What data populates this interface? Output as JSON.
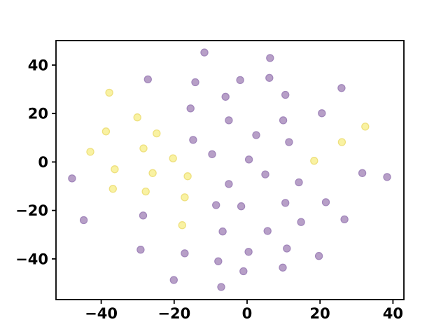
{
  "figure": {
    "background": "#ffffff",
    "frame_color": "#000000",
    "tick_label_color": "#000000"
  },
  "chart_data": {
    "type": "scatter",
    "title": "",
    "xlabel": "",
    "ylabel": "",
    "grid": false,
    "legend_position": "none",
    "xlim": [
      -52.4,
      43.0
    ],
    "ylim": [
      -56.8,
      50.1
    ],
    "xticks": {
      "values": [
        -40,
        -20,
        0,
        20,
        40
      ],
      "labels": [
        "−40",
        "−20",
        "0",
        "20",
        "40"
      ]
    },
    "yticks": {
      "values": [
        -40,
        -20,
        0,
        20,
        40
      ],
      "labels": [
        "−40",
        "−20",
        "0",
        "20",
        "40"
      ]
    },
    "marker": {
      "radius": 5,
      "stroke_width": 1.3
    },
    "series": [
      {
        "name": "class-purple",
        "fill": "#b79fc7",
        "stroke": "#a287bb",
        "points": [
          [
            -11.7,
            45.2
          ],
          [
            -27.2,
            34.1
          ],
          [
            -14.2,
            32.9
          ],
          [
            -5.9,
            26.9
          ],
          [
            -15.5,
            22.1
          ],
          [
            -14.8,
            9.1
          ],
          [
            -9.6,
            3.2
          ],
          [
            6.3,
            42.9
          ],
          [
            -1.9,
            33.8
          ],
          [
            6.1,
            34.7
          ],
          [
            25.9,
            30.5
          ],
          [
            10.5,
            27.7
          ],
          [
            20.5,
            20.1
          ],
          [
            -5.0,
            17.2
          ],
          [
            9.9,
            17.2
          ],
          [
            2.5,
            11.1
          ],
          [
            11.5,
            8.2
          ],
          [
            0.5,
            1.0
          ],
          [
            -48.0,
            -6.8
          ],
          [
            -8.5,
            -17.8
          ],
          [
            -44.8,
            -24.0
          ],
          [
            -28.5,
            -22.1
          ],
          [
            -6.7,
            -28.7
          ],
          [
            -29.2,
            -36.2
          ],
          [
            -17.1,
            -37.7
          ],
          [
            -7.9,
            -41.0
          ],
          [
            -20.1,
            -48.7
          ],
          [
            -7.1,
            -51.6
          ],
          [
            5.0,
            -5.1
          ],
          [
            31.6,
            -4.6
          ],
          [
            38.4,
            -6.2
          ],
          [
            -5.0,
            -9.1
          ],
          [
            14.2,
            -8.4
          ],
          [
            -1.6,
            -18.3
          ],
          [
            10.5,
            -16.9
          ],
          [
            21.6,
            -16.6
          ],
          [
            14.8,
            -24.8
          ],
          [
            26.7,
            -23.7
          ],
          [
            5.6,
            -28.5
          ],
          [
            0.4,
            -37.1
          ],
          [
            10.9,
            -35.7
          ],
          [
            19.7,
            -38.8
          ],
          [
            -1.0,
            -45.1
          ],
          [
            9.8,
            -43.6
          ]
        ]
      },
      {
        "name": "class-yellow",
        "fill": "#f9f2a2",
        "stroke": "#eee07e",
        "points": [
          [
            -37.8,
            28.6
          ],
          [
            -30.1,
            18.4
          ],
          [
            -38.7,
            12.6
          ],
          [
            -24.8,
            11.8
          ],
          [
            -28.4,
            5.6
          ],
          [
            -43.0,
            4.2
          ],
          [
            -20.3,
            1.5
          ],
          [
            -36.3,
            -3.0
          ],
          [
            32.4,
            14.6
          ],
          [
            26.0,
            8.2
          ],
          [
            18.4,
            0.5
          ],
          [
            -25.9,
            -4.6
          ],
          [
            -16.3,
            -5.9
          ],
          [
            -36.8,
            -11.1
          ],
          [
            -27.8,
            -12.2
          ],
          [
            -17.1,
            -14.6
          ],
          [
            -17.8,
            -26.1
          ]
        ]
      }
    ]
  }
}
